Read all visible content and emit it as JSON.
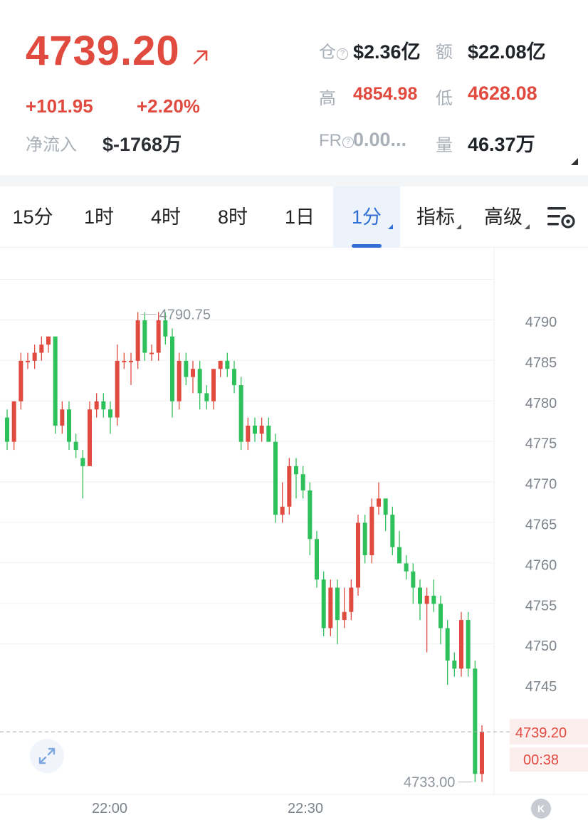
{
  "header": {
    "title_fragment": "",
    "price": "4739.20",
    "change_abs": "+101.95",
    "change_pct": "+2.20%",
    "netflow_label": "净流入",
    "netflow_value": "$-1768万",
    "open_interest_label": "仓",
    "open_interest_value": "$2.36亿",
    "turnover_label": "额",
    "turnover_value": "$22.08亿",
    "high_label": "高",
    "high_value": "4854.98",
    "low_label": "低",
    "low_value": "4628.08",
    "fr_label": "FR",
    "fr_value": "0.00...",
    "volume_label": "量",
    "volume_value": "46.37万"
  },
  "tabs": [
    {
      "label": "15分"
    },
    {
      "label": "1时"
    },
    {
      "label": "4时"
    },
    {
      "label": "8时"
    },
    {
      "label": "1日"
    },
    {
      "label": "1分",
      "active": true
    },
    {
      "label": "指标"
    },
    {
      "label": "高级"
    }
  ],
  "colors": {
    "up": "#e04a3f",
    "down": "#2ec05a",
    "accent": "#2f6fd3"
  },
  "icons": {
    "settings": "chart-settings-icon",
    "expand": "expand-icon",
    "price_arrow": "arrow-up-right-icon",
    "k_button": "k-icon"
  },
  "chart_data": {
    "type": "candlestick",
    "interval": "1分",
    "y_axis_ticks": [
      4790,
      4785,
      4780,
      4775,
      4770,
      4765,
      4760,
      4755,
      4750,
      4745
    ],
    "x_axis_ticks": [
      "22:00",
      "22:30"
    ],
    "ylim": [
      4731,
      4796
    ],
    "max_marker": "4790.75",
    "min_marker": "4733.00",
    "last_price_tag": "4739.20",
    "countdown": "00:38",
    "k_button_label": "K",
    "candles": [
      [
        4778,
        4779,
        4774,
        4775
      ],
      [
        4775,
        4780,
        4774,
        4780
      ],
      [
        4780,
        4786,
        4779,
        4785
      ],
      [
        4785,
        4786,
        4784,
        4785
      ],
      [
        4785,
        4787,
        4784,
        4786
      ],
      [
        4786,
        4788,
        4785,
        4787
      ],
      [
        4787,
        4788,
        4786,
        4788
      ],
      [
        4788,
        4788,
        4776,
        4777
      ],
      [
        4777,
        4780,
        4776,
        4779
      ],
      [
        4779,
        4780,
        4774,
        4775
      ],
      [
        4775,
        4776,
        4773,
        4774
      ],
      [
        4773,
        4774,
        4768,
        4772
      ],
      [
        4772,
        4780,
        4772,
        4779
      ],
      [
        4779,
        4781,
        4778,
        4780
      ],
      [
        4780,
        4781,
        4778,
        4779
      ],
      [
        4779,
        4780,
        4776,
        4778
      ],
      [
        4778,
        4787,
        4777,
        4785
      ],
      [
        4785,
        4786,
        4784,
        4785
      ],
      [
        4785,
        4786,
        4782,
        4785
      ],
      [
        4785,
        4791,
        4784,
        4790
      ],
      [
        4790,
        4791,
        4785,
        4786
      ],
      [
        4786,
        4787,
        4785,
        4786
      ],
      [
        4786,
        4791,
        4785,
        4790
      ],
      [
        4790,
        4791,
        4787,
        4788
      ],
      [
        4788,
        4789,
        4778,
        4780
      ],
      [
        4780,
        4786,
        4779,
        4785
      ],
      [
        4785,
        4786,
        4782,
        4783
      ],
      [
        4783,
        4785,
        4781,
        4784
      ],
      [
        4784,
        4785,
        4779,
        4781
      ],
      [
        4781,
        4782,
        4779,
        4780
      ],
      [
        4780,
        4784,
        4779,
        4784
      ],
      [
        4784,
        4785,
        4783,
        4785
      ],
      [
        4785,
        4786,
        4783,
        4784
      ],
      [
        4784,
        4785,
        4781,
        4782
      ],
      [
        4782,
        4783,
        4774,
        4775
      ],
      [
        4775,
        4778,
        4774,
        4777
      ],
      [
        4777,
        4778,
        4775,
        4776
      ],
      [
        4776,
        4778,
        4775,
        4777
      ],
      [
        4777,
        4778,
        4775,
        4775
      ],
      [
        4775,
        4776,
        4765,
        4766
      ],
      [
        4766,
        4770,
        4765,
        4767
      ],
      [
        4767,
        4773,
        4766,
        4772
      ],
      [
        4772,
        4773,
        4768,
        4771
      ],
      [
        4771,
        4772,
        4768,
        4769
      ],
      [
        4769,
        4770,
        4761,
        4763
      ],
      [
        4763,
        4764,
        4757,
        4758
      ],
      [
        4758,
        4759,
        4751,
        4752
      ],
      [
        4752,
        4758,
        4751,
        4757
      ],
      [
        4757,
        4758,
        4750,
        4753
      ],
      [
        4753,
        4757,
        4752,
        4754
      ],
      [
        4754,
        4758,
        4753,
        4757
      ],
      [
        4757,
        4766,
        4756,
        4765
      ],
      [
        4765,
        4766,
        4760,
        4761
      ],
      [
        4761,
        4768,
        4760,
        4767
      ],
      [
        4767,
        4770,
        4766,
        4768
      ],
      [
        4768,
        4768,
        4764,
        4766
      ],
      [
        4766,
        4767,
        4761,
        4762
      ],
      [
        4762,
        4764,
        4760,
        4760
      ],
      [
        4760,
        4761,
        4758,
        4759
      ],
      [
        4759,
        4760,
        4755,
        4757
      ],
      [
        4757,
        4758,
        4753,
        4755
      ],
      [
        4755,
        4757,
        4749,
        4756
      ],
      [
        4756,
        4758,
        4754,
        4755
      ],
      [
        4755,
        4756,
        4750,
        4752
      ],
      [
        4752,
        4753,
        4745,
        4748
      ],
      [
        4748,
        4749,
        4746,
        4747
      ],
      [
        4747,
        4754,
        4746,
        4753
      ],
      [
        4753,
        4754,
        4746,
        4747
      ],
      [
        4747,
        4748,
        4733,
        4734
      ],
      [
        4734,
        4740,
        4733,
        4739.2
      ]
    ]
  }
}
